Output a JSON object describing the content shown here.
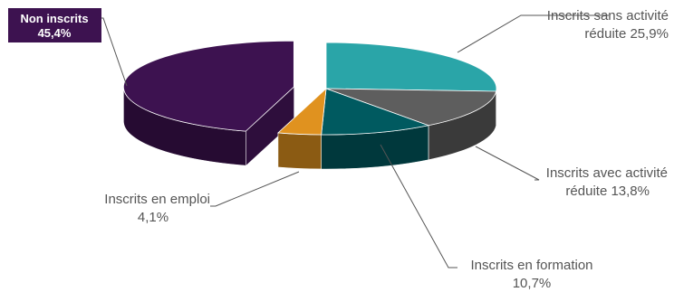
{
  "chart_data": {
    "type": "pie",
    "title": "",
    "slices": [
      {
        "key": "sans",
        "line1": "Inscrits sans activité",
        "line2": "réduite 25,9%",
        "value": 25.9,
        "color": "#2aa5a8",
        "exploded": false
      },
      {
        "key": "avec",
        "line1": "Inscrits avec activité",
        "line2": "réduite 13,8%",
        "value": 13.8,
        "color": "#5e5e5e",
        "exploded": false
      },
      {
        "key": "formation",
        "line1": "Inscrits en formation",
        "line2": "10,7%",
        "value": 10.7,
        "color": "#005a60",
        "exploded": false
      },
      {
        "key": "emploi",
        "line1": "Inscrits en emploi",
        "line2": "4,1%",
        "value": 4.1,
        "color": "#e0921f",
        "exploded": false
      },
      {
        "key": "non",
        "line1": "Non inscrits",
        "line2": "45,4%",
        "value": 45.4,
        "color": "#3d1250",
        "exploded": true,
        "boxed": true
      }
    ]
  }
}
